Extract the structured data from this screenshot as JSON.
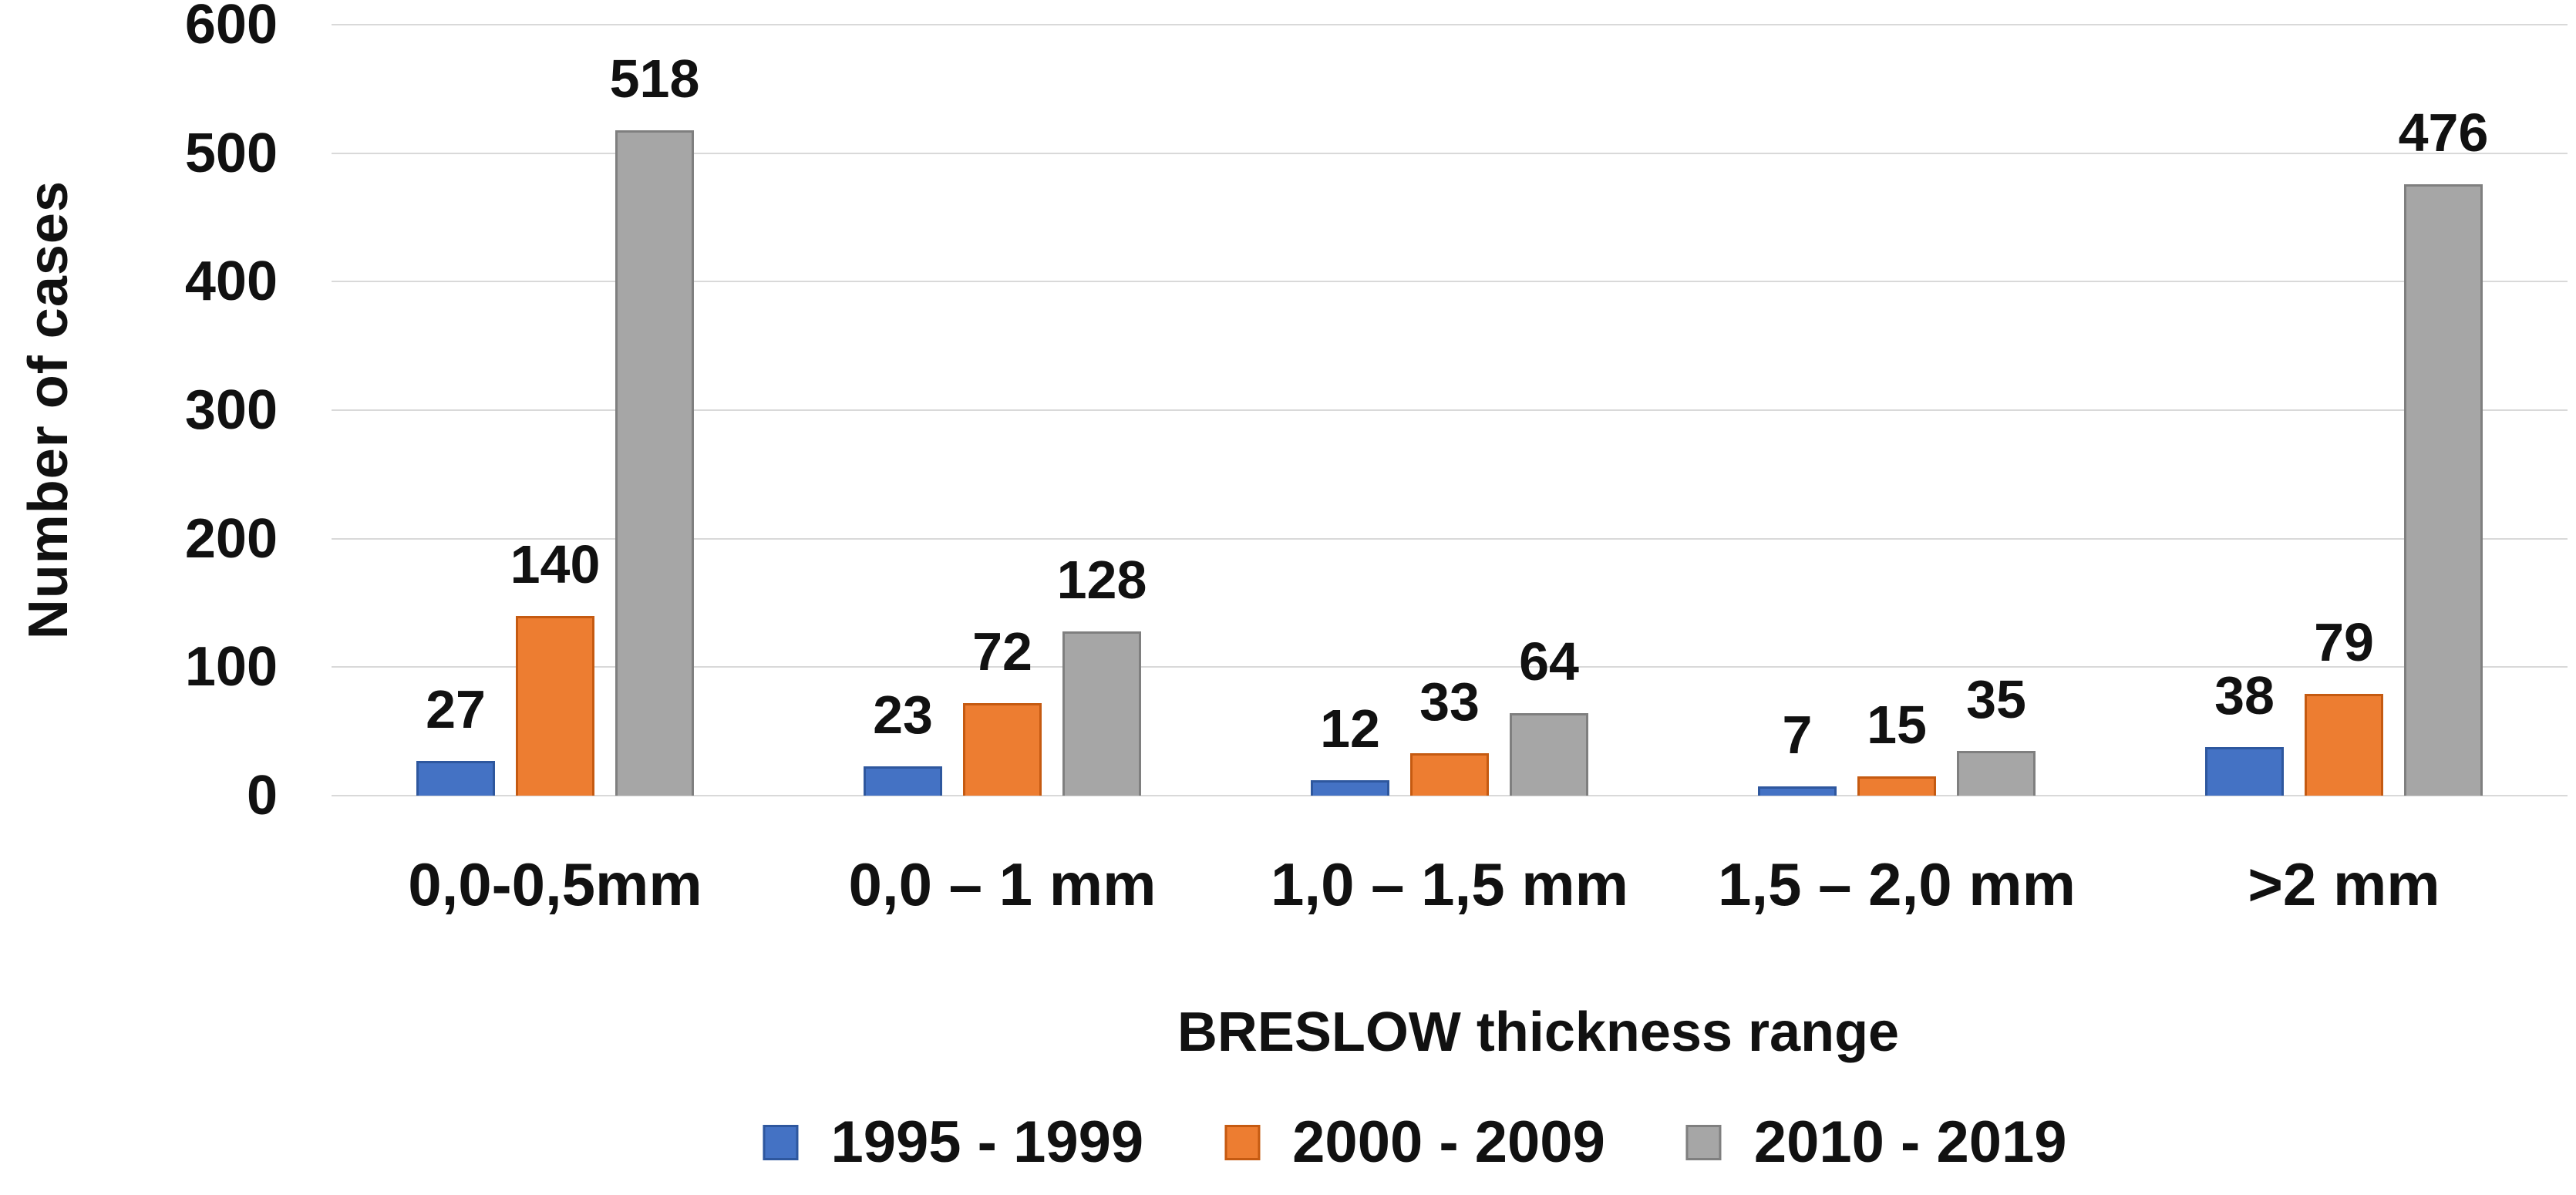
{
  "colors": {
    "background": "#FFFFFF",
    "text": "#111111",
    "gridline": "#D9D9D9"
  },
  "chart_data": {
    "type": "bar",
    "title": "",
    "xlabel": "BRESLOW thickness range",
    "ylabel": "Number of cases",
    "ylim": [
      0,
      600
    ],
    "yticks": [
      0,
      100,
      200,
      300,
      400,
      500,
      600
    ],
    "grid": true,
    "legend_position": "bottom",
    "categories": [
      "0,0-0,5mm",
      "0,0 – 1 mm",
      "1,0 – 1,5 mm",
      "1,5 – 2,0 mm",
      ">2 mm"
    ],
    "series": [
      {
        "name": "1995 - 1999",
        "color": "#4472C4",
        "border_color": "#2E579E",
        "values": [
          27,
          23,
          12,
          7,
          38
        ]
      },
      {
        "name": "2000 - 2009",
        "color": "#ED7D31",
        "border_color": "#C55A11",
        "values": [
          140,
          72,
          33,
          15,
          79
        ]
      },
      {
        "name": "2010 - 2019",
        "color": "#A6A6A6",
        "border_color": "#7F7F7F",
        "values": [
          518,
          128,
          64,
          35,
          476
        ]
      }
    ],
    "data_labels_visible": true
  }
}
